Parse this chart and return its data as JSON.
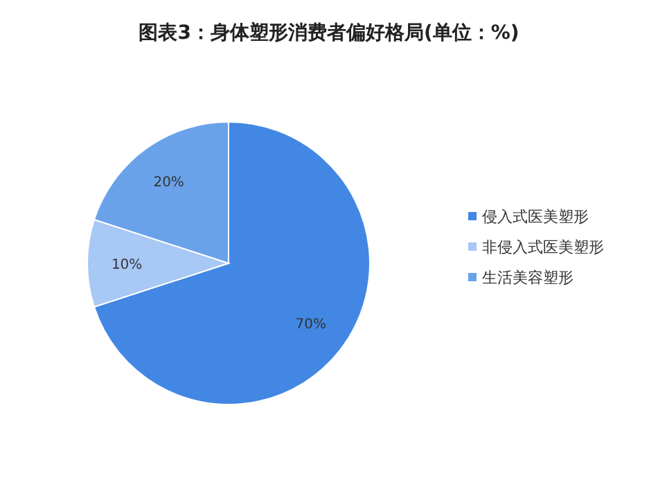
{
  "chart_data": {
    "type": "pie",
    "title": "图表3：身体塑形消费者偏好格局(单位：%)",
    "categories": [
      "侵入式医美塑形",
      "非侵入式医美塑形",
      "生活美容塑形"
    ],
    "values": [
      70,
      10,
      20
    ],
    "colors": [
      "#4287e3",
      "#a8c8f5",
      "#6aa2ea"
    ],
    "value_labels": [
      "70%",
      "10%",
      "20%"
    ],
    "legend": "right"
  }
}
